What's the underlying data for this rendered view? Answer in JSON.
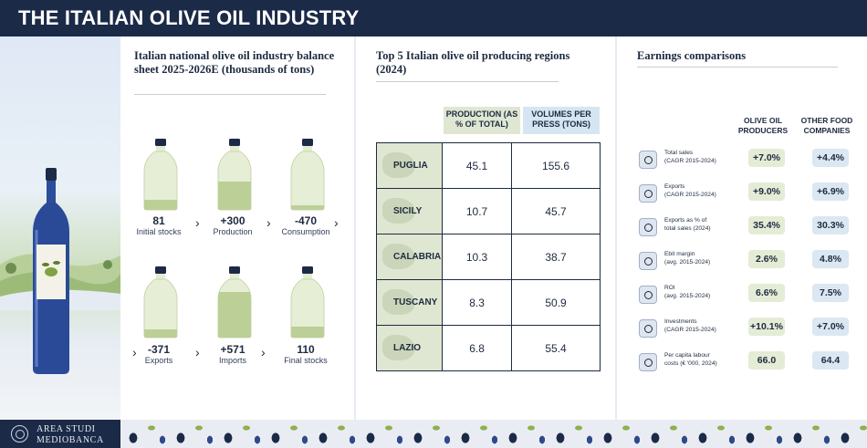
{
  "header": {
    "title": "THE ITALIAN OLIVE OIL INDUSTRY"
  },
  "balance": {
    "title": "Italian national olive oil industry balance sheet 2025-2026E (thousands of tons)",
    "items": [
      {
        "value": "81",
        "label": "Initial stocks",
        "fill": 0.18
      },
      {
        "value": "+300",
        "label": "Production",
        "fill": 0.5
      },
      {
        "value": "-470",
        "label": "Consumption",
        "fill": 0.08
      },
      {
        "value": "-371",
        "label": "Exports",
        "fill": 0.15
      },
      {
        "value": "+571",
        "label": "Imports",
        "fill": 0.8
      },
      {
        "value": "110",
        "label": "Final stocks",
        "fill": 0.2
      }
    ]
  },
  "regions": {
    "title": "Top 5 Italian olive oil producing regions (2024)",
    "col1": "PRODUCTION (AS % OF TOTAL)",
    "col2": "VOLUMES PER PRESS (TONS)",
    "rows": [
      {
        "name": "PUGLIA",
        "pct": "45.1",
        "vol": "155.6"
      },
      {
        "name": "SICILY",
        "pct": "10.7",
        "vol": "45.7"
      },
      {
        "name": "CALABRIA",
        "pct": "10.3",
        "vol": "38.7"
      },
      {
        "name": "TUSCANY",
        "pct": "8.3",
        "vol": "50.9"
      },
      {
        "name": "LAZIO",
        "pct": "6.8",
        "vol": "55.4"
      }
    ]
  },
  "earnings": {
    "title": "Earnings comparisons",
    "col1": "OLIVE OIL PRODUCERS",
    "col2": "OTHER FOOD COMPANIES",
    "rows": [
      {
        "l1": "Total sales",
        "l2": "(CAGR 2015-2024)",
        "a": "+7.0%",
        "b": "+4.4%",
        "icon": "bar-chart-icon"
      },
      {
        "l1": "Exports",
        "l2": "(CAGR 2015-2024)",
        "a": "+9.0%",
        "b": "+6.9%",
        "icon": "globe-icon"
      },
      {
        "l1": "Exports as % of",
        "l2": "total sales (2024)",
        "a": "35.4%",
        "b": "30.3%",
        "icon": "globe-arrow-icon"
      },
      {
        "l1": "Ebit margin",
        "l2": "(avg. 2015-2024)",
        "a": "2.6%",
        "b": "4.8%",
        "icon": "coins-icon"
      },
      {
        "l1": "ROI",
        "l2": "(avg. 2015-2024)",
        "a": "6.6%",
        "b": "7.5%",
        "icon": "cycle-icon"
      },
      {
        "l1": "Investments",
        "l2": "(CAGR 2015-2024)",
        "a": "+10.1%",
        "b": "+7.0%",
        "icon": "factory-icon"
      },
      {
        "l1": "Per capita labour",
        "l2": "costs (€ '000, 2024)",
        "a": "66.0",
        "b": "64.4",
        "icon": "workers-icon"
      }
    ]
  },
  "footer": {
    "line1": "AREA STUDI",
    "line2": "MEDIOBANCA"
  },
  "colors": {
    "navy": "#1b2a47",
    "green": "#dfe7d2",
    "blue": "#d5e6f2"
  }
}
